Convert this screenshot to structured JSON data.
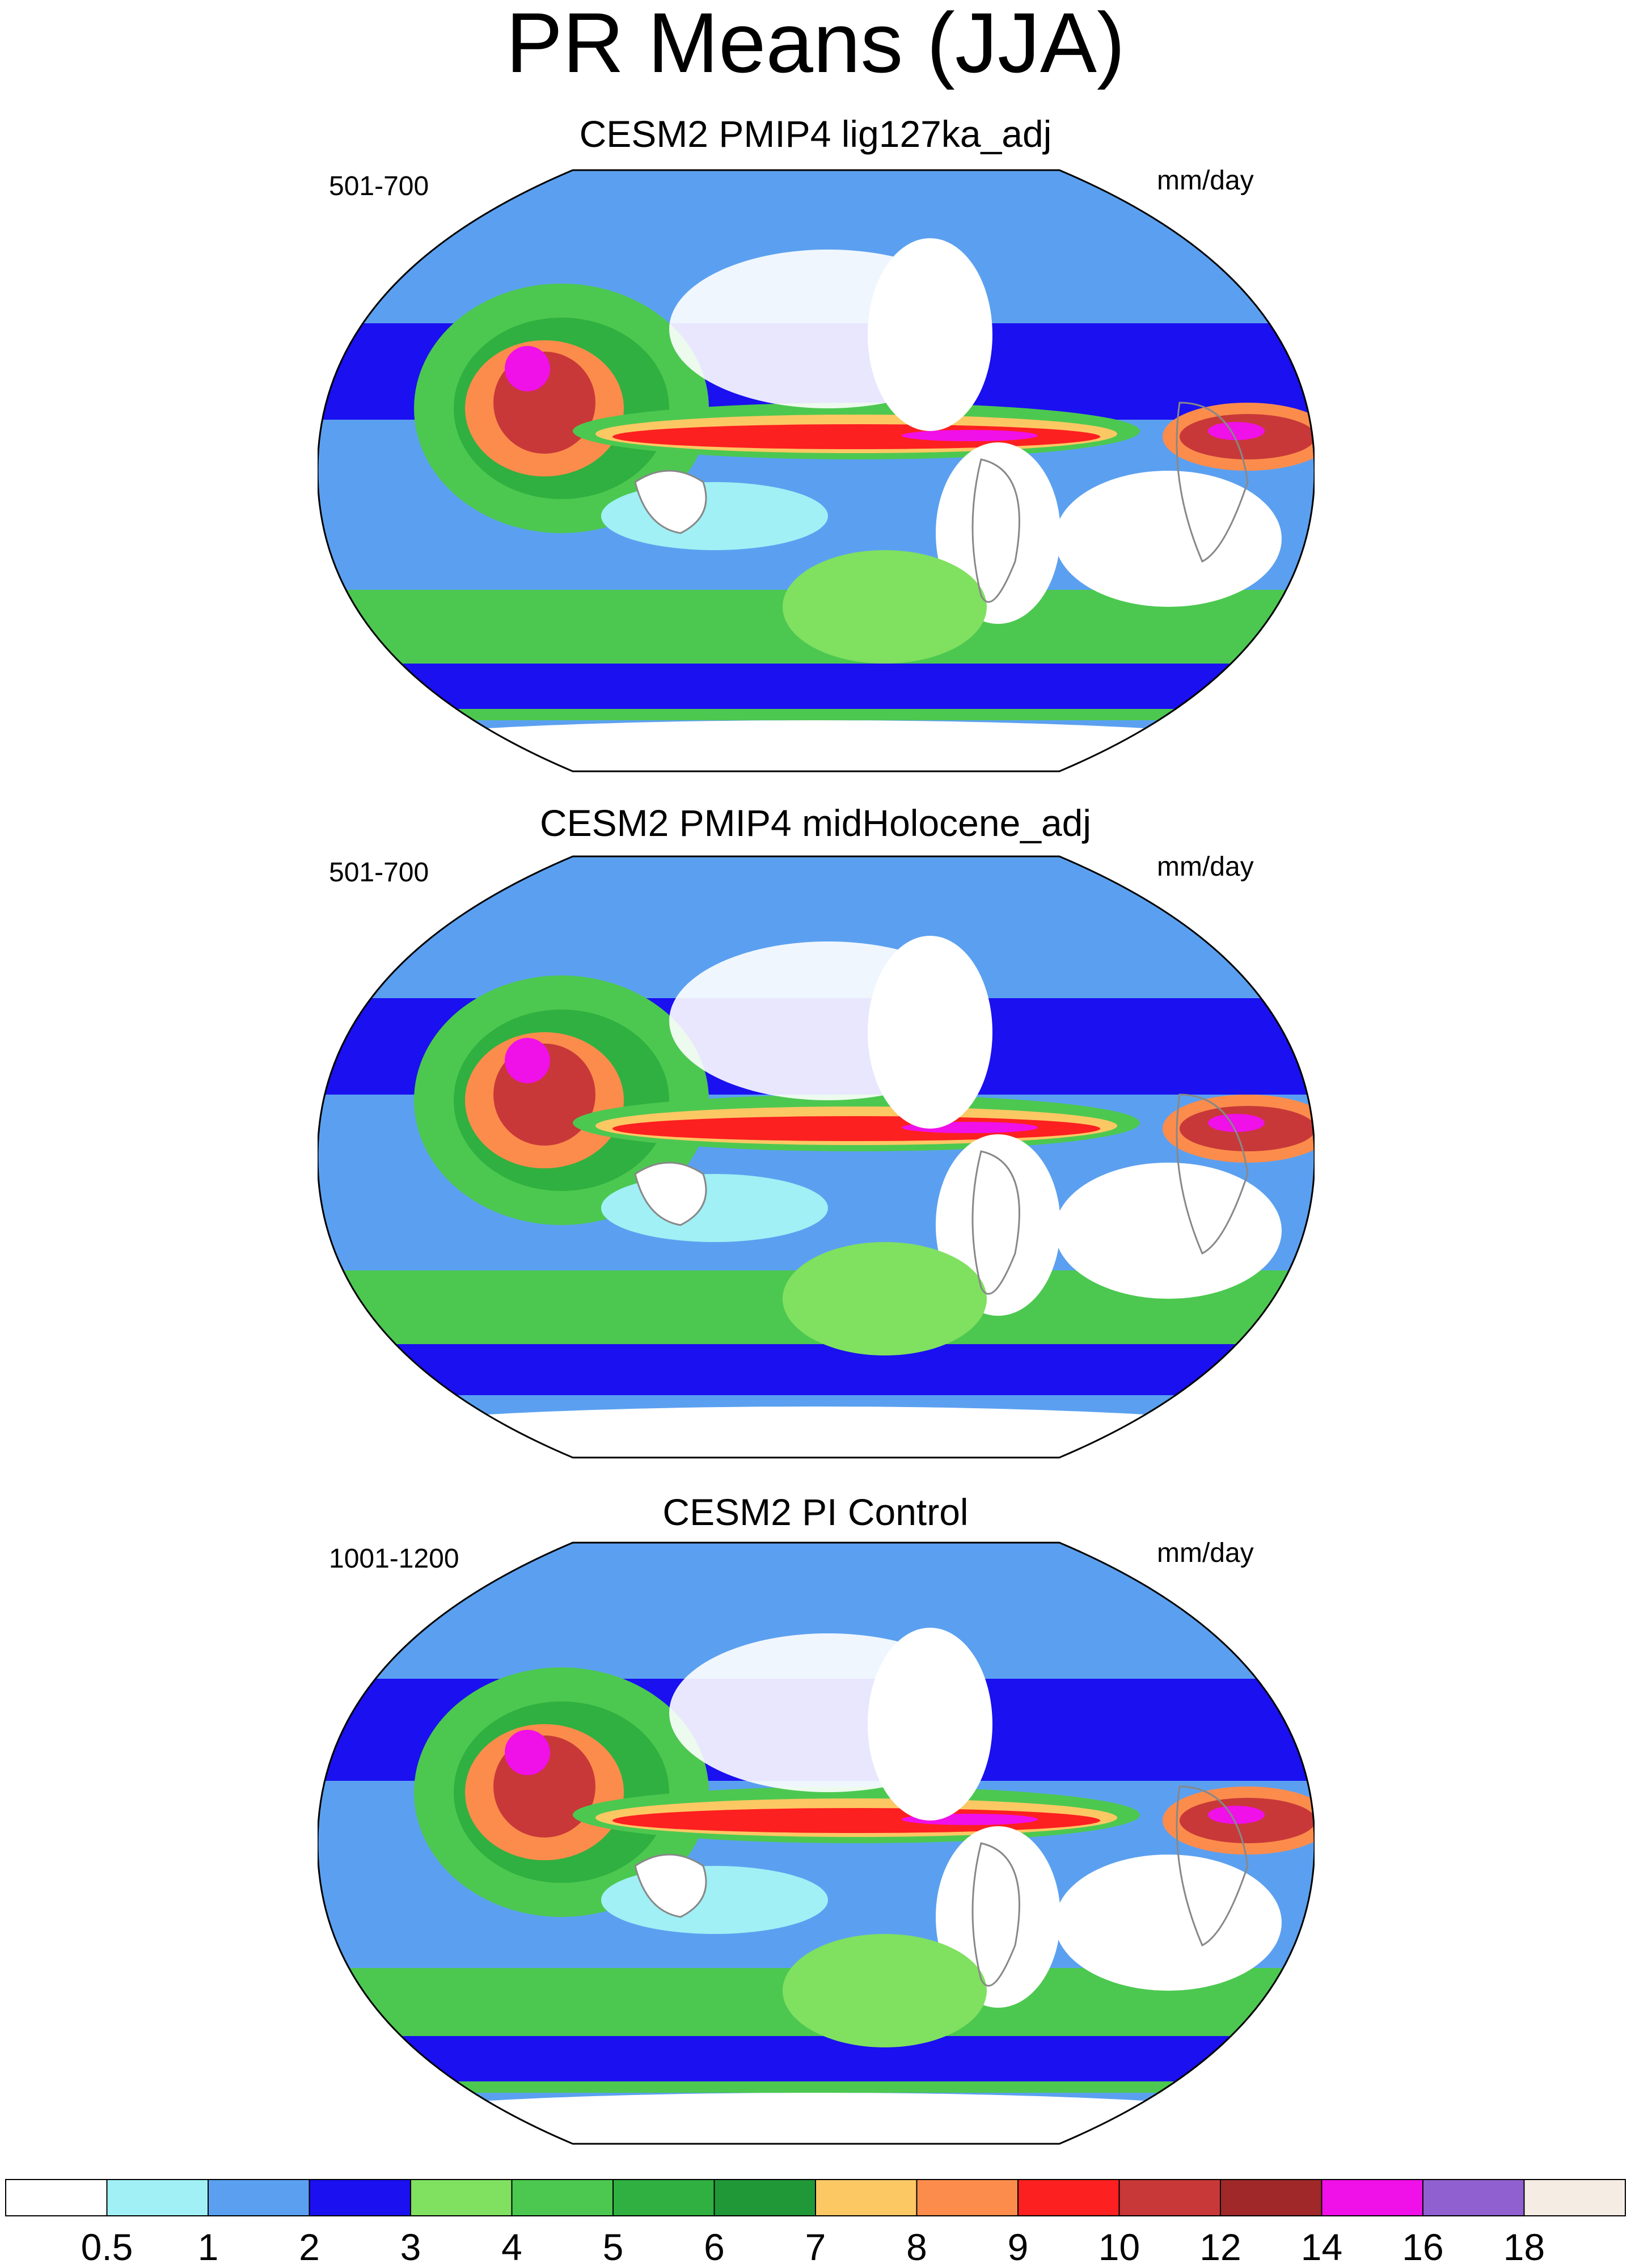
{
  "title": "PR Means (JJA)",
  "panels": [
    {
      "title": "CESM2 PMIP4 lig127ka_adj",
      "period": "501-700",
      "units": "mm/day"
    },
    {
      "title": "CESM2 PMIP4 midHolocene_adj",
      "period": "501-700",
      "units": "mm/day"
    },
    {
      "title": "CESM2 PI Control",
      "period": "1001-1200",
      "units": "mm/day"
    }
  ],
  "colorbar": {
    "labels": [
      "0.5",
      "1",
      "2",
      "3",
      "4",
      "5",
      "6",
      "7",
      "8",
      "9",
      "10",
      "12",
      "14",
      "16",
      "18"
    ],
    "colors": [
      "#ffffff",
      "#a0f0f5",
      "#5ba0f0",
      "#1a10f0",
      "#80e060",
      "#4cc850",
      "#30b040",
      "#209838",
      "#fcc864",
      "#fc8c4c",
      "#fc2020",
      "#c83838",
      "#a02828",
      "#f010e8",
      "#9060d0",
      "#f5ece4"
    ]
  },
  "map_features": {
    "projection": "Robinson-like global, centered on 180",
    "land_outline_color": "#888888"
  }
}
